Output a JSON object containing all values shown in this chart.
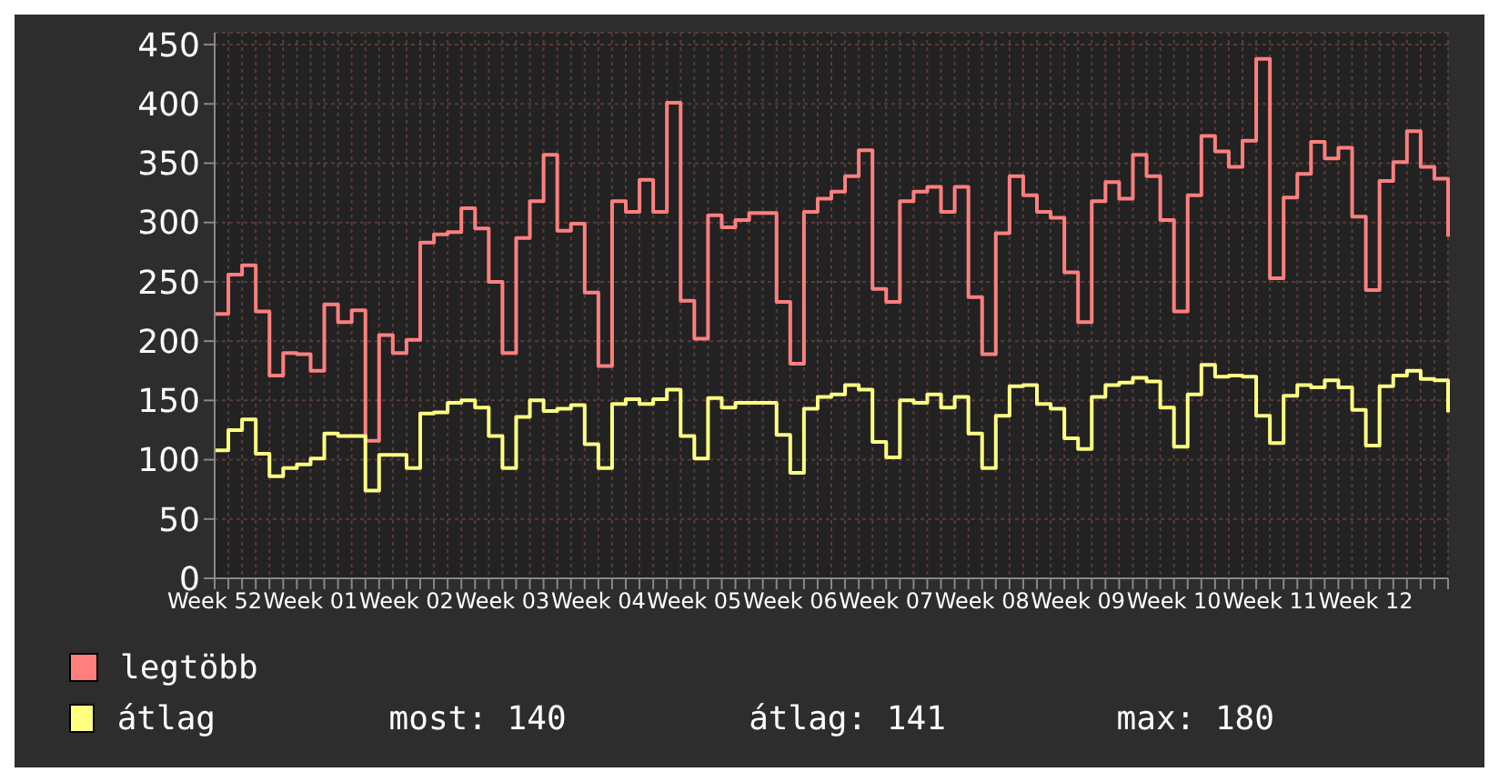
{
  "chart_data": {
    "type": "step",
    "categories": [
      "Week 52",
      null,
      null,
      null,
      null,
      null,
      null,
      "Week 01",
      null,
      null,
      null,
      null,
      null,
      null,
      "Week 02",
      null,
      null,
      null,
      null,
      null,
      null,
      "Week 03",
      null,
      null,
      null,
      null,
      null,
      null,
      "Week 04",
      null,
      null,
      null,
      null,
      null,
      null,
      "Week 05",
      null,
      null,
      null,
      null,
      null,
      null,
      "Week 06",
      null,
      null,
      null,
      null,
      null,
      null,
      "Week 07",
      null,
      null,
      null,
      null,
      null,
      null,
      "Week 08",
      null,
      null,
      null,
      null,
      null,
      null,
      "Week 09",
      null,
      null,
      null,
      null,
      null,
      null,
      "Week 10",
      null,
      null,
      null,
      null,
      null,
      null,
      "Week 11",
      null,
      null,
      null,
      null,
      null,
      null,
      "Week 12",
      null,
      null,
      null,
      null,
      null,
      null
    ],
    "series": [
      {
        "name": "legtöbb",
        "color": "#ff7f7f",
        "values": [
          223,
          256,
          264,
          225,
          171,
          190,
          189,
          175,
          231,
          216,
          226,
          116,
          205,
          190,
          201,
          283,
          290,
          292,
          312,
          295,
          250,
          190,
          287,
          318,
          357,
          293,
          299,
          241,
          179,
          318,
          309,
          336,
          309,
          401,
          234,
          202,
          306,
          296,
          302,
          308,
          308,
          233,
          181,
          309,
          320,
          326,
          339,
          361,
          244,
          233,
          318,
          326,
          330,
          309,
          330,
          237,
          189,
          291,
          339,
          323,
          309,
          304,
          258,
          216,
          318,
          334,
          320,
          357,
          339,
          302,
          225,
          323,
          373,
          360,
          347,
          369,
          438,
          253,
          321,
          341,
          368,
          354,
          363,
          305,
          243,
          335,
          351,
          377,
          347,
          337,
          288
        ]
      },
      {
        "name": "átlag",
        "color": "#ffff80",
        "values": [
          108,
          125,
          134,
          105,
          86,
          93,
          96,
          101,
          122,
          120,
          120,
          74,
          104,
          104,
          93,
          139,
          140,
          148,
          150,
          144,
          120,
          93,
          136,
          150,
          141,
          143,
          146,
          113,
          93,
          147,
          151,
          147,
          151,
          159,
          120,
          101,
          152,
          144,
          148,
          148,
          148,
          121,
          89,
          143,
          153,
          155,
          163,
          159,
          115,
          102,
          150,
          148,
          155,
          144,
          153,
          122,
          93,
          137,
          162,
          163,
          147,
          143,
          118,
          109,
          153,
          163,
          165,
          169,
          166,
          144,
          111,
          155,
          180,
          170,
          171,
          170,
          137,
          114,
          154,
          163,
          161,
          167,
          161,
          142,
          112,
          162,
          171,
          175,
          168,
          167,
          140
        ]
      }
    ],
    "ylim": [
      0,
      460
    ],
    "yticks": [
      0,
      50,
      100,
      150,
      200,
      250,
      300,
      350,
      400,
      450
    ],
    "grid": true,
    "legend": "bottom",
    "annotations": [
      "most: 140",
      "átlag: 141",
      "max: 180"
    ]
  }
}
